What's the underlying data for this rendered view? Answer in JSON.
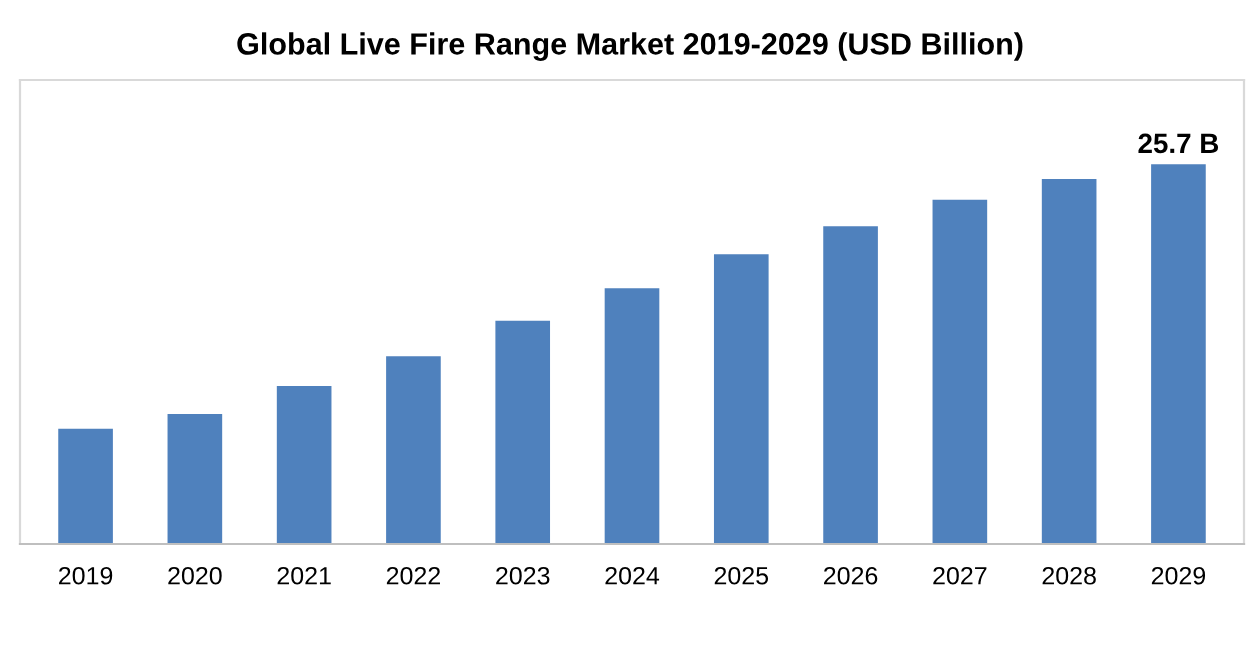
{
  "chart_data": {
    "type": "bar",
    "title": "Global Live Fire Range Market 2019-2029 (USD Billion)",
    "color": "#4f81bd",
    "categories": [
      "2019",
      "2020",
      "2021",
      "2022",
      "2023",
      "2024",
      "2025",
      "2026",
      "2027",
      "2028",
      "2029"
    ],
    "values": [
      7.8,
      8.8,
      10.7,
      12.7,
      15.1,
      17.3,
      19.6,
      21.5,
      23.3,
      24.7,
      25.7
    ],
    "value_labels": [
      null,
      null,
      null,
      null,
      null,
      null,
      null,
      null,
      null,
      null,
      "25.7 B"
    ],
    "ylim": [
      0,
      31.4
    ],
    "tick_labels": "x",
    "grid": false,
    "legend": false
  }
}
